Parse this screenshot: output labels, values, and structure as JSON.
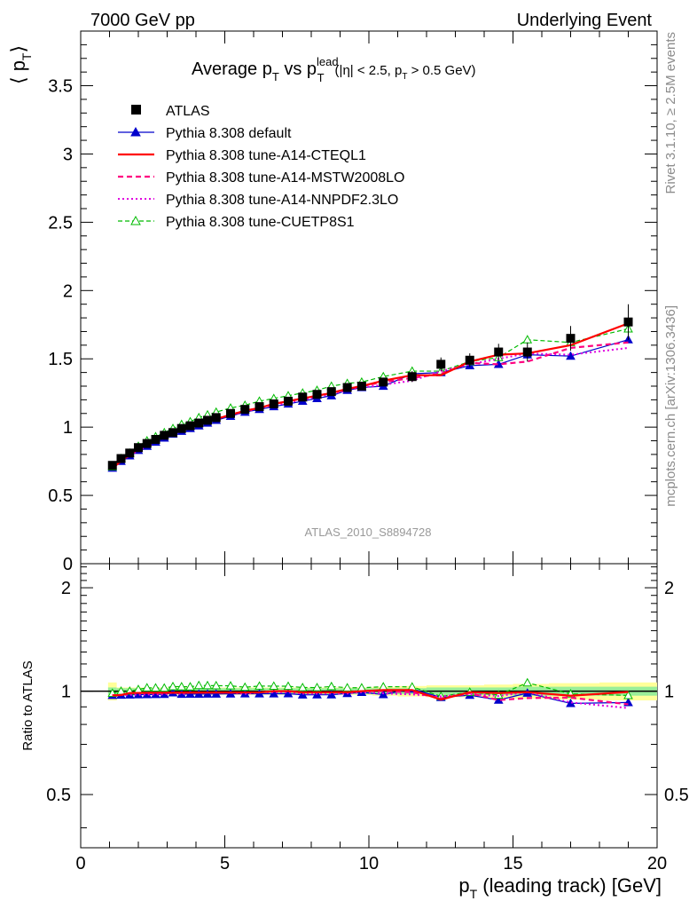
{
  "header": {
    "left": "7000 GeV pp",
    "right": "Underlying Event"
  },
  "side_labels": {
    "rivet": "Rivet 3.1.10, ≥ 2.5M events",
    "mcplots": "mcplots.cern.ch [arXiv:1306.3436]"
  },
  "watermark": "ATLAS_2010_S8894728",
  "colors": {
    "atlas": "#000000",
    "default": "#0000cc",
    "cteql1": "#ff0000",
    "mstw": "#ff0080",
    "nnpdf": "#e000e0",
    "cuetp8s1": "#00bb00",
    "band_yellow": "#ffff99",
    "band_green": "#99ee99"
  },
  "chart_data": {
    "type": "line",
    "title_parts": {
      "main": "Average p",
      "sub1": "T",
      "vs": " vs p",
      "sup": "lead",
      "sub2": "T",
      "cut_a": "(|η| < 2.5, p",
      "cut_sub": "T",
      "cut_b": " > 0.5 GeV)"
    },
    "ylabel": {
      "open": "⟨ p",
      "sub": "T",
      "close": "⟩"
    },
    "xlabel": {
      "p": "p",
      "sub": "T",
      "rest": " (leading track) [GeV]"
    },
    "ratio_ylabel": "Ratio to ATLAS",
    "xlim": [
      0,
      20
    ],
    "ylim": [
      0,
      3.9
    ],
    "ratio_ylim": [
      0.35,
      2.35
    ],
    "x_ticks": [
      "0",
      "5",
      "10",
      "15",
      "20"
    ],
    "y_ticks": [
      "0",
      "0.5",
      "1",
      "1.5",
      "2",
      "2.5",
      "3",
      "3.5"
    ],
    "ratio_ticks": [
      "0.5",
      "1",
      "2"
    ],
    "x": [
      1.1,
      1.4,
      1.7,
      2.0,
      2.3,
      2.6,
      2.9,
      3.2,
      3.5,
      3.8,
      4.1,
      4.4,
      4.7,
      5.2,
      5.7,
      6.2,
      6.7,
      7.2,
      7.7,
      8.2,
      8.7,
      9.25,
      9.75,
      10.5,
      11.5,
      12.5,
      13.5,
      14.5,
      15.5,
      17.0,
      19.0
    ],
    "series": [
      {
        "name": "ATLAS",
        "style": "atlas",
        "values": [
          0.72,
          0.77,
          0.81,
          0.85,
          0.88,
          0.91,
          0.94,
          0.96,
          0.99,
          1.01,
          1.03,
          1.05,
          1.07,
          1.1,
          1.13,
          1.15,
          1.17,
          1.19,
          1.22,
          1.24,
          1.26,
          1.29,
          1.3,
          1.33,
          1.37,
          1.46,
          1.49,
          1.55,
          1.55,
          1.65,
          1.77
        ],
        "errors": [
          0.02,
          0.02,
          0.02,
          0.02,
          0.02,
          0.02,
          0.02,
          0.02,
          0.02,
          0.02,
          0.02,
          0.02,
          0.02,
          0.02,
          0.02,
          0.02,
          0.02,
          0.02,
          0.02,
          0.02,
          0.02,
          0.02,
          0.02,
          0.03,
          0.04,
          0.05,
          0.05,
          0.06,
          0.07,
          0.09,
          0.13
        ]
      },
      {
        "name": "Pythia 8.308 default",
        "style": "default",
        "values": [
          0.7,
          0.75,
          0.79,
          0.83,
          0.86,
          0.89,
          0.92,
          0.95,
          0.97,
          0.99,
          1.01,
          1.03,
          1.05,
          1.08,
          1.11,
          1.13,
          1.15,
          1.17,
          1.19,
          1.21,
          1.23,
          1.27,
          1.29,
          1.3,
          1.39,
          1.4,
          1.45,
          1.46,
          1.53,
          1.52,
          1.64
        ]
      },
      {
        "name": "Pythia 8.308 tune-A14-CTEQL1",
        "style": "cteql1",
        "values": [
          0.7,
          0.75,
          0.8,
          0.84,
          0.87,
          0.9,
          0.93,
          0.95,
          0.98,
          1.0,
          1.02,
          1.04,
          1.06,
          1.09,
          1.12,
          1.14,
          1.17,
          1.19,
          1.21,
          1.23,
          1.25,
          1.28,
          1.3,
          1.34,
          1.38,
          1.38,
          1.48,
          1.53,
          1.54,
          1.6,
          1.76
        ]
      },
      {
        "name": "Pythia 8.308 tune-A14-MSTW2008LO",
        "style": "mstw",
        "values": [
          0.7,
          0.75,
          0.8,
          0.84,
          0.87,
          0.9,
          0.93,
          0.95,
          0.98,
          1.0,
          1.02,
          1.04,
          1.06,
          1.09,
          1.12,
          1.14,
          1.17,
          1.19,
          1.21,
          1.23,
          1.25,
          1.28,
          1.3,
          1.33,
          1.36,
          1.39,
          1.47,
          1.46,
          1.48,
          1.58,
          1.62
        ]
      },
      {
        "name": "Pythia 8.308 tune-A14-NNPDF2.3LO",
        "style": "nnpdf",
        "values": [
          0.7,
          0.75,
          0.79,
          0.83,
          0.86,
          0.89,
          0.92,
          0.95,
          0.97,
          1.0,
          1.02,
          1.04,
          1.06,
          1.09,
          1.11,
          1.14,
          1.16,
          1.18,
          1.2,
          1.22,
          1.24,
          1.27,
          1.29,
          1.31,
          1.34,
          1.41,
          1.46,
          1.5,
          1.54,
          1.53,
          1.58
        ]
      },
      {
        "name": "Pythia 8.308 tune-CUETP8S1",
        "style": "cuetp8s1",
        "values": [
          0.71,
          0.77,
          0.81,
          0.86,
          0.9,
          0.93,
          0.96,
          0.99,
          1.02,
          1.04,
          1.07,
          1.09,
          1.11,
          1.14,
          1.16,
          1.19,
          1.21,
          1.23,
          1.25,
          1.27,
          1.3,
          1.32,
          1.33,
          1.37,
          1.41,
          1.41,
          1.48,
          1.51,
          1.64,
          1.62,
          1.72
        ]
      }
    ],
    "band": {
      "yellow_halfwidth": [
        0.06,
        0.025,
        0.025,
        0.025,
        0.025,
        0.025,
        0.025,
        0.025,
        0.025,
        0.025,
        0.025,
        0.025,
        0.025,
        0.025,
        0.025,
        0.025,
        0.025,
        0.025,
        0.025,
        0.025,
        0.025,
        0.025,
        0.025,
        0.03,
        0.035,
        0.04,
        0.04,
        0.045,
        0.05,
        0.055,
        0.06
      ],
      "green_halfwidth": [
        0.025,
        0.02,
        0.02,
        0.02,
        0.02,
        0.02,
        0.02,
        0.02,
        0.02,
        0.02,
        0.02,
        0.02,
        0.02,
        0.02,
        0.02,
        0.02,
        0.02,
        0.02,
        0.02,
        0.02,
        0.02,
        0.02,
        0.02,
        0.02,
        0.02,
        0.025,
        0.025,
        0.025,
        0.03,
        0.03,
        0.03
      ]
    }
  }
}
